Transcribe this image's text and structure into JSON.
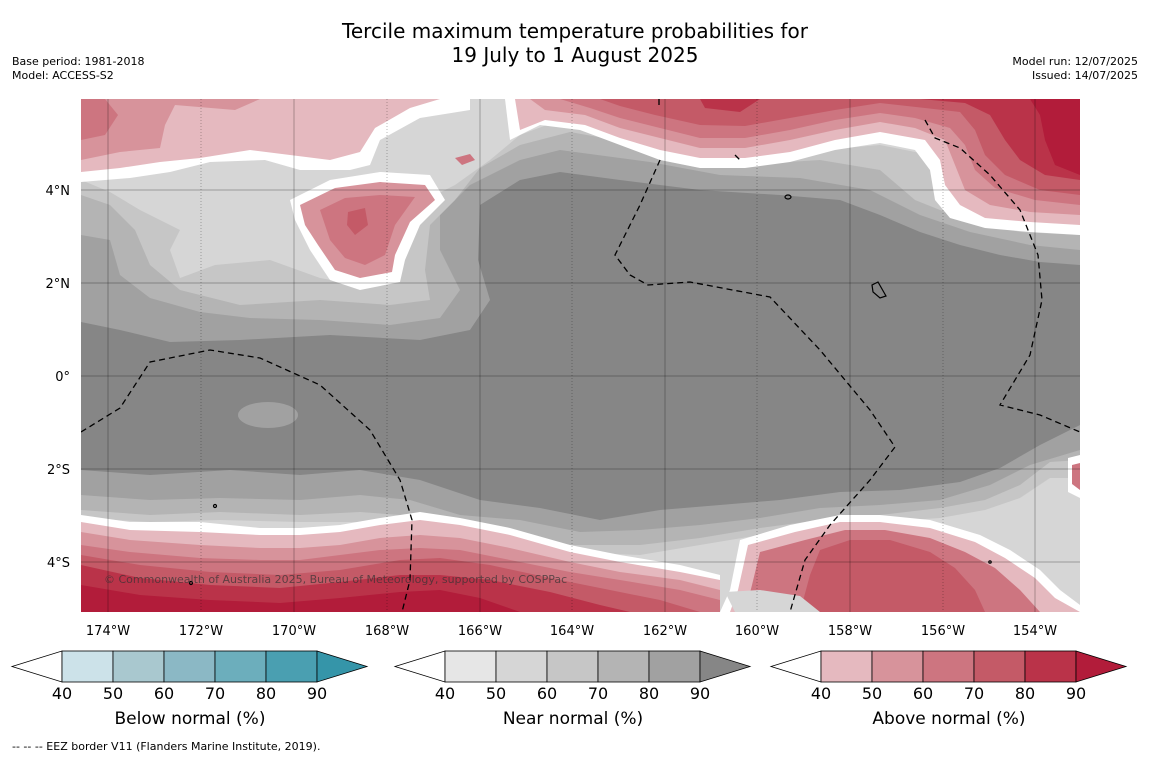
{
  "header": {
    "title_line1": "Tercile maximum temperature probabilities for",
    "title_line2": "19 July to 1 August 2025",
    "base_period": "Base period: 1981-2018",
    "model": "Model: ACCESS-S2",
    "model_run": "Model run: 12/07/2025",
    "issued": "Issued: 14/07/2025"
  },
  "map": {
    "lon_labels": [
      "174°W",
      "172°W",
      "170°W",
      "168°W",
      "166°W",
      "164°W",
      "162°W",
      "160°W",
      "158°W",
      "156°W",
      "154°W"
    ],
    "lat_labels": [
      "4°N",
      "2°N",
      "0°",
      "2°S",
      "4°S"
    ],
    "copyright": "© Commonwealth of Australia 2025, Bureau of Meteorology, supported by COSPPac"
  },
  "colorbars": [
    {
      "title": "Below normal (%)",
      "ticks": [
        "40",
        "50",
        "60",
        "70",
        "80",
        "90"
      ],
      "colors": [
        "#cce2e9",
        "#a9c8cf",
        "#8bb8c5",
        "#6caebc",
        "#4a9fb1",
        "#3595a9"
      ]
    },
    {
      "title": "Near normal (%)",
      "ticks": [
        "40",
        "50",
        "60",
        "70",
        "80",
        "90"
      ],
      "colors": [
        "#e6e6e6",
        "#d6d6d6",
        "#c6c6c6",
        "#b4b4b4",
        "#a1a1a1",
        "#868686"
      ]
    },
    {
      "title": "Above normal (%)",
      "ticks": [
        "40",
        "50",
        "60",
        "70",
        "80",
        "90"
      ],
      "colors": [
        "#e5b9bf",
        "#d7939b",
        "#cd7580",
        "#c45a67",
        "#ba3349",
        "#b21c3a"
      ]
    }
  ],
  "footer": "--  --  -- EEZ border V11 (Flanders Marine Institute, 2019)."
}
